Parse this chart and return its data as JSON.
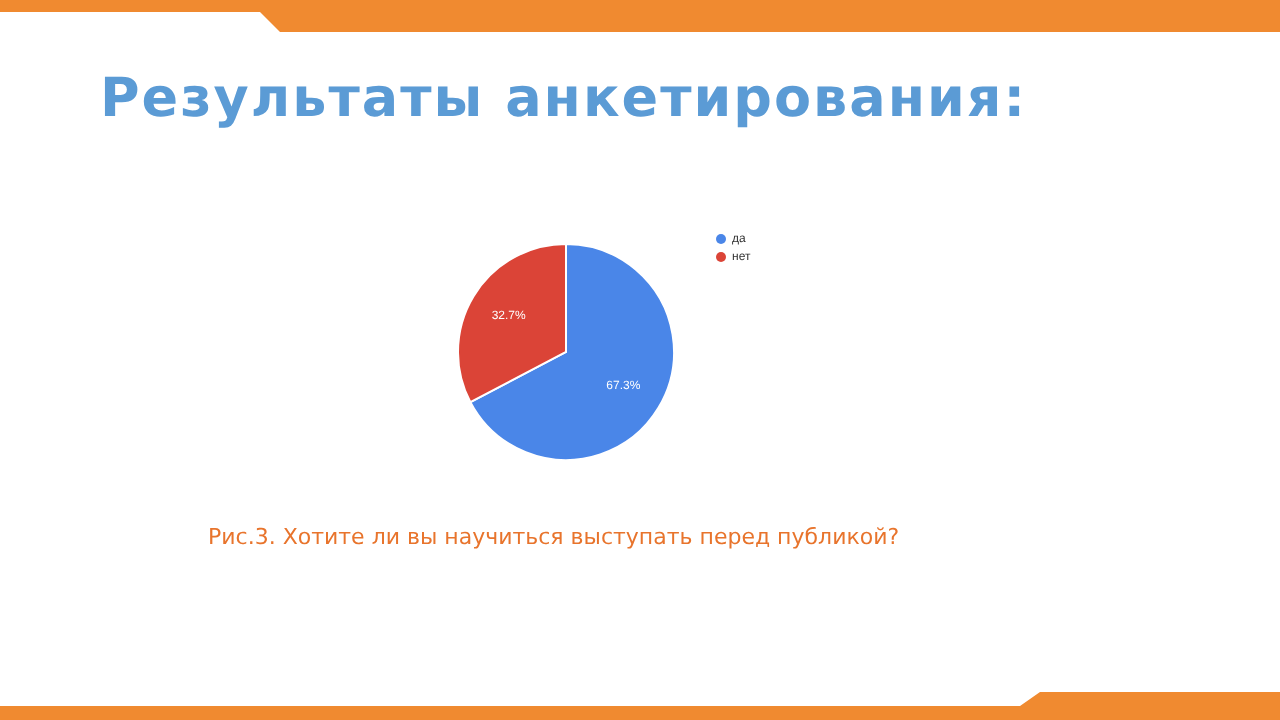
{
  "chart_data": {
    "type": "pie",
    "title": "Результаты анкетирования:",
    "categories": [
      "да",
      "нет"
    ],
    "values": [
      67.3,
      32.7
    ],
    "colors": [
      "#4a86e8",
      "#db4437"
    ],
    "value_labels": [
      "67.3%",
      "32.7%"
    ],
    "legend": "top right",
    "annotations": [
      "Рис.3. Хотите ли вы научиться выступать перед публикой?"
    ]
  }
}
